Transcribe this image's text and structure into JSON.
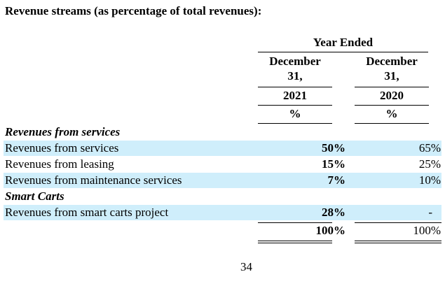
{
  "title": "Revenue streams (as percentage of total revenues):",
  "header": {
    "year_ended": "Year Ended",
    "col_2021": {
      "line1": "December",
      "line2": "31,",
      "year": "2021",
      "unit": "%"
    },
    "col_2020": {
      "line1": "December",
      "line2": "31,",
      "year": "2020",
      "unit": "%"
    }
  },
  "sections": {
    "services": {
      "label": "Revenues from services"
    },
    "smart_carts": {
      "label": "Smart Carts"
    }
  },
  "rows": [
    {
      "label": "Revenues from services",
      "v2021": "50%",
      "v2020": "65%"
    },
    {
      "label": "Revenues from leasing",
      "v2021": "15%",
      "v2020": "25%"
    },
    {
      "label": "Revenues from maintenance services",
      "v2021": "7%",
      "v2020": "10%"
    },
    {
      "label": "Revenues from smart carts project",
      "v2021": "28%",
      "v2020": "-"
    }
  ],
  "total": {
    "v2021": "100%",
    "v2020": "100%"
  },
  "page_number": "34"
}
